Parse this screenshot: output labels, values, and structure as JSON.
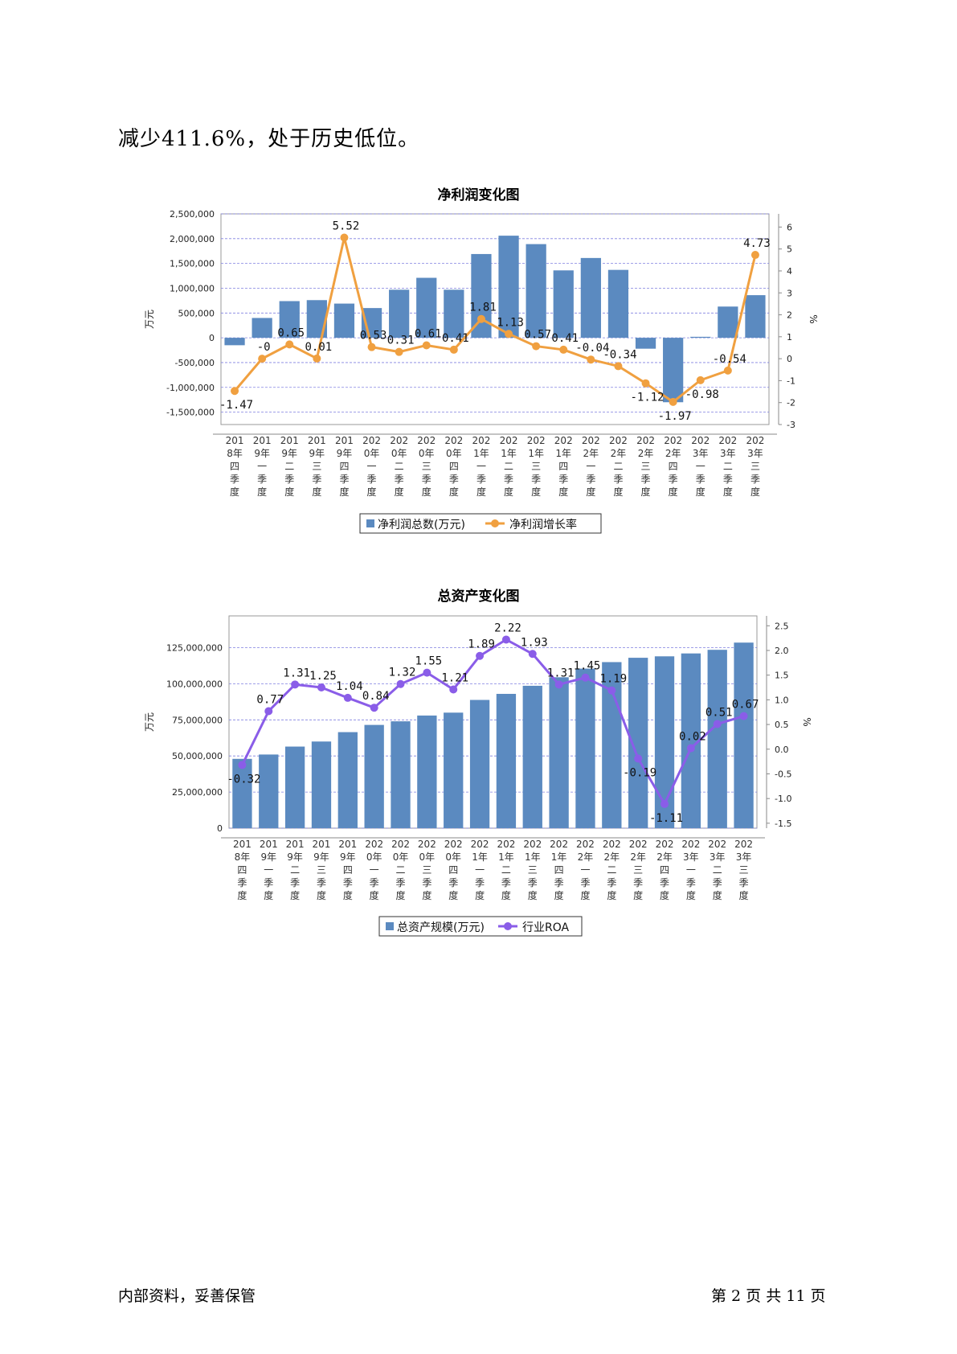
{
  "intro_text": "减少411.6%，处于历史低位。",
  "footer": {
    "left": "内部资料，妥善保管",
    "right": "第 2 页   共 11 页"
  },
  "colors": {
    "bar": "#5b8ac0",
    "line1": "#f0a040",
    "line2": "#8a5de8",
    "grid": "#8080e0"
  },
  "chart_data": [
    {
      "type": "bar",
      "title": "净利润变化图",
      "ylabel": "万元",
      "y2label": "%",
      "ylim": [
        -1750000,
        2500000
      ],
      "y2lim": [
        -3,
        6.6
      ],
      "yticks": [
        "2,500,000",
        "2,000,000",
        "1,500,000",
        "1,000,000",
        "500,000",
        "0",
        "-500,000",
        "-1,000,000",
        "-1,500,000"
      ],
      "y2ticks": [
        "6",
        "5",
        "4",
        "3",
        "2",
        "1",
        "0",
        "-1",
        "-2",
        "-3"
      ],
      "categories": [
        [
          "201",
          "8年",
          "四",
          "季",
          "度"
        ],
        [
          "201",
          "9年",
          "一",
          "季",
          "度"
        ],
        [
          "201",
          "9年",
          "二",
          "季",
          "度"
        ],
        [
          "201",
          "9年",
          "三",
          "季",
          "度"
        ],
        [
          "201",
          "9年",
          "四",
          "季",
          "度"
        ],
        [
          "202",
          "0年",
          "一",
          "季",
          "度"
        ],
        [
          "202",
          "0年",
          "二",
          "季",
          "度"
        ],
        [
          "202",
          "0年",
          "三",
          "季",
          "度"
        ],
        [
          "202",
          "0年",
          "四",
          "季",
          "度"
        ],
        [
          "202",
          "1年",
          "一",
          "季",
          "度"
        ],
        [
          "202",
          "1年",
          "二",
          "季",
          "度"
        ],
        [
          "202",
          "1年",
          "三",
          "季",
          "度"
        ],
        [
          "202",
          "1年",
          "四",
          "季",
          "度"
        ],
        [
          "202",
          "2年",
          "一",
          "季",
          "度"
        ],
        [
          "202",
          "2年",
          "二",
          "季",
          "度"
        ],
        [
          "202",
          "2年",
          "三",
          "季",
          "度"
        ],
        [
          "202",
          "2年",
          "四",
          "季",
          "度"
        ],
        [
          "202",
          "3年",
          "一",
          "季",
          "度"
        ],
        [
          "202",
          "3年",
          "二",
          "季",
          "度"
        ],
        [
          "202",
          "3年",
          "三",
          "季",
          "度"
        ]
      ],
      "series": [
        {
          "name": "净利润总数(万元)",
          "type": "bar",
          "values": [
            -150000,
            400000,
            740000,
            760000,
            690000,
            600000,
            970000,
            1210000,
            970000,
            1690000,
            2060000,
            1890000,
            1360000,
            1610000,
            1370000,
            -220000,
            -1300000,
            20000,
            630000,
            860000
          ]
        },
        {
          "name": "净利润增长率",
          "type": "line",
          "values": [
            -1.47,
            0,
            0.65,
            0.01,
            5.52,
            0.53,
            0.31,
            0.61,
            0.41,
            1.81,
            1.13,
            0.57,
            0.41,
            -0.04,
            -0.34,
            -1.12,
            -1.97,
            -0.98,
            -0.54,
            4.73
          ],
          "labels": [
            "-1.47",
            "-0",
            "0.65",
            "0.01",
            "5.52",
            "0.53",
            "0.31",
            "0.61",
            "0.41",
            "1.81",
            "1.13",
            "0.57",
            "0.41",
            "-0.04",
            "-0.34",
            "-1.12",
            "-1.97",
            "-0.98",
            "-0.54",
            "4.73"
          ]
        }
      ]
    },
    {
      "type": "bar",
      "title": "总资产变化图",
      "ylabel": "万元",
      "y2label": "%",
      "ylim": [
        0,
        147000000
      ],
      "y2lim": [
        -1.6,
        2.7
      ],
      "yticks": [
        "125,000,000",
        "100,000,000",
        "75,000,000",
        "50,000,000",
        "25,000,000",
        "0"
      ],
      "y2ticks": [
        "2.5",
        "2.0",
        "1.5",
        "1.0",
        "0.5",
        "0.0",
        "-0.5",
        "-1.0",
        "-1.5"
      ],
      "categories": [
        [
          "201",
          "8年",
          "四",
          "季",
          "度"
        ],
        [
          "201",
          "9年",
          "一",
          "季",
          "度"
        ],
        [
          "201",
          "9年",
          "二",
          "季",
          "度"
        ],
        [
          "201",
          "9年",
          "三",
          "季",
          "度"
        ],
        [
          "201",
          "9年",
          "四",
          "季",
          "度"
        ],
        [
          "202",
          "0年",
          "一",
          "季",
          "度"
        ],
        [
          "202",
          "0年",
          "二",
          "季",
          "度"
        ],
        [
          "202",
          "0年",
          "三",
          "季",
          "度"
        ],
        [
          "202",
          "0年",
          "四",
          "季",
          "度"
        ],
        [
          "202",
          "1年",
          "一",
          "季",
          "度"
        ],
        [
          "202",
          "1年",
          "二",
          "季",
          "度"
        ],
        [
          "202",
          "1年",
          "三",
          "季",
          "度"
        ],
        [
          "202",
          "1年",
          "四",
          "季",
          "度"
        ],
        [
          "202",
          "2年",
          "一",
          "季",
          "度"
        ],
        [
          "202",
          "2年",
          "二",
          "季",
          "度"
        ],
        [
          "202",
          "2年",
          "三",
          "季",
          "度"
        ],
        [
          "202",
          "2年",
          "四",
          "季",
          "度"
        ],
        [
          "202",
          "3年",
          "一",
          "季",
          "度"
        ],
        [
          "202",
          "3年",
          "二",
          "季",
          "度"
        ],
        [
          "202",
          "3年",
          "三",
          "季",
          "度"
        ]
      ],
      "series": [
        {
          "name": "总资产规模(万元)",
          "type": "bar",
          "values": [
            48000000,
            51000000,
            56500000,
            60000000,
            66500000,
            71500000,
            74000000,
            78000000,
            80000000,
            88800000,
            93000000,
            98600000,
            104500000,
            110500000,
            115000000,
            118000000,
            119000000,
            121000000,
            123500000,
            128500000
          ]
        },
        {
          "name": "行业ROA",
          "type": "line",
          "values": [
            -0.32,
            0.77,
            1.31,
            1.25,
            1.04,
            0.84,
            1.32,
            1.55,
            1.21,
            1.89,
            2.22,
            1.93,
            1.31,
            1.45,
            1.19,
            -0.19,
            -1.11,
            0.02,
            0.51,
            0.67
          ],
          "labels": [
            "-0.32",
            "0.77",
            "1.31",
            "1.25",
            "1.04",
            "0.84",
            "1.32",
            "1.55",
            "1.21",
            "1.89",
            "2.22",
            "1.93",
            "1.31",
            "1.45",
            "1.19",
            "-0.19",
            "-1.11",
            "0.02",
            "0.51",
            "0.67"
          ]
        }
      ]
    }
  ]
}
